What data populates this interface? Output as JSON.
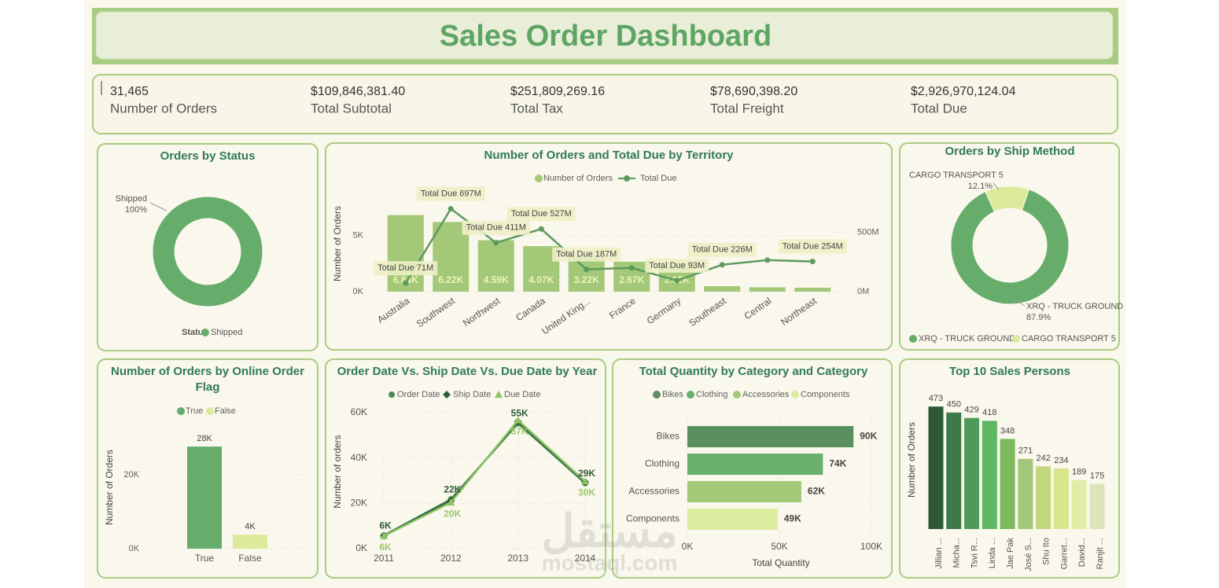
{
  "title": "Sales Order Dashboard",
  "kpis": [
    {
      "value": "31,465",
      "label": "Number of Orders"
    },
    {
      "value": "$109,846,381.40",
      "label": "Total Subtotal"
    },
    {
      "value": "$251,809,269.16",
      "label": "Total Tax"
    },
    {
      "value": "$78,690,398.20",
      "label": "Total Freight"
    },
    {
      "value": "$2,926,970,124.04",
      "label": "Total Due"
    }
  ],
  "chart_data": [
    {
      "type": "pie",
      "title": "Orders by Status",
      "legend_title": "Status",
      "categories": [
        "Shipped"
      ],
      "values": [
        100
      ],
      "value_labels": [
        "100%"
      ],
      "colors": [
        "#66ad6b"
      ],
      "donut": true
    },
    {
      "type": "bar_line",
      "title": "Number of Orders and Total Due by Territory",
      "categories": [
        "Australia",
        "Southwest",
        "Northwest",
        "Canada",
        "United King...",
        "France",
        "Germany",
        "Southeast",
        "Central",
        "Northeast"
      ],
      "series": [
        {
          "name": "Number of Orders",
          "type": "bar",
          "color": "#a3c878",
          "values": [
            6843,
            6224,
            4594,
            4067,
            3219,
            2672,
            2623,
            486,
            385,
            352
          ],
          "value_labels": [
            "6.84K",
            "6.22K",
            "4.59K",
            "4.07K",
            "3.22K",
            "2.67K",
            "2.62K",
            null,
            null,
            null
          ]
        },
        {
          "name": "Total Due",
          "type": "line",
          "axis": "y2",
          "color": "#5c9a5e",
          "values": [
            71,
            697,
            411,
            527,
            187,
            200,
            93,
            226,
            265,
            254
          ],
          "value_labels": [
            "Total Due 71M",
            "Total Due 697M",
            "Total Due 411M",
            "Total Due 527M",
            "Total Due 187M",
            null,
            "Total Due 93M",
            "Total Due 226M",
            null,
            "Total Due 254M"
          ]
        }
      ],
      "ylabel": "Number of Orders",
      "ylim": [
        0,
        8500
      ],
      "yticks": [
        {
          "value": 0,
          "label": "0K"
        },
        {
          "value": 5000,
          "label": "5K"
        }
      ],
      "y2lim": [
        0,
        800
      ],
      "y2ticks": [
        {
          "value": 0,
          "label": "0M"
        },
        {
          "value": 500,
          "label": "500M"
        }
      ],
      "grid": true
    },
    {
      "type": "pie",
      "title": "Orders by Ship Method",
      "categories": [
        "XRQ - TRUCK GROUND",
        "CARGO TRANSPORT 5"
      ],
      "values": [
        87.9,
        12.1
      ],
      "value_labels": [
        "87.9%",
        "12.1%"
      ],
      "colors": [
        "#66ad6b",
        "#dbeb9b"
      ],
      "donut": true
    },
    {
      "type": "bar",
      "title": "Number of Orders by Online Order Flag",
      "categories": [
        "True",
        "False"
      ],
      "values": [
        27659,
        3806
      ],
      "value_labels": [
        "28K",
        "4K"
      ],
      "colors": [
        "#66ad6b",
        "#dbeb9b"
      ],
      "ylabel": "Number of Orders",
      "ylim": [
        0,
        33000
      ],
      "yticks": [
        {
          "value": 0,
          "label": "0K"
        },
        {
          "value": 20000,
          "label": "20K"
        }
      ],
      "grid": true,
      "legend": true
    },
    {
      "type": "line",
      "title": "Order Date Vs. Ship Date Vs. Due Date by Year",
      "x": [
        2011,
        2012,
        2013,
        2014
      ],
      "xlim": [
        2011,
        2014
      ],
      "xticks": [
        2011,
        2012,
        2013,
        2014
      ],
      "series": [
        {
          "name": "Order Date",
          "color": "#4a8a57",
          "marker": "circle",
          "values": [
            5800,
            21800,
            55300,
            28900
          ],
          "value_labels": [
            "6K",
            "22K",
            "55K",
            "29K"
          ]
        },
        {
          "name": "Ship Date",
          "color": "#2d5e36",
          "marker": "diamond",
          "values": [
            5700,
            21100,
            56100,
            29400
          ]
        },
        {
          "name": "Due Date",
          "color": "#8fc466",
          "marker": "triangle",
          "values": [
            5600,
            20400,
            56700,
            29700
          ],
          "value_labels": [
            "6K",
            "20K",
            "57K",
            "30K"
          ]
        }
      ],
      "ylabel": "Number of orders",
      "ylim": [
        0,
        60000
      ],
      "yticks": [
        {
          "value": 0,
          "label": "0K"
        },
        {
          "value": 20000,
          "label": "20K"
        },
        {
          "value": 40000,
          "label": "40K"
        },
        {
          "value": 60000,
          "label": "60K"
        }
      ],
      "grid": true
    },
    {
      "type": "hbar",
      "title": "Total Quantity by Category and Category",
      "categories": [
        "Bikes",
        "Clothing",
        "Accessories",
        "Components"
      ],
      "values": [
        90268,
        73670,
        61932,
        49044
      ],
      "value_labels": [
        "90K",
        "74K",
        "62K",
        "49K"
      ],
      "colors": [
        "#5a9060",
        "#68b06b",
        "#a3c878",
        "#dcec9e"
      ],
      "xlabel": "Total Quantity",
      "xlim": [
        0,
        100000
      ],
      "xticks": [
        {
          "value": 0,
          "label": "0K"
        },
        {
          "value": 50000,
          "label": "50K"
        },
        {
          "value": 100000,
          "label": "100K"
        }
      ],
      "grid": true,
      "legend": true
    },
    {
      "type": "bar",
      "title": "Top 10 Sales Persons",
      "categories": [
        "Jillian ...",
        "Micha...",
        "Tsvi R...",
        "Linda ...",
        "Jae Pak",
        "José S...",
        "Shu Ito",
        "Garret...",
        "David...",
        "Ranjit ..."
      ],
      "values": [
        473,
        450,
        429,
        418,
        348,
        271,
        242,
        234,
        189,
        175
      ],
      "colors": [
        "#2c5a36",
        "#3d7a4a",
        "#4f9a5a",
        "#5fb862",
        "#7cba5c",
        "#a3c67a",
        "#c2d77c",
        "#d8e68e",
        "#e2eca6",
        "#dde4bc"
      ],
      "ylabel": "Number of Orders",
      "ylim": [
        0,
        510
      ],
      "yticks": [],
      "grid": false,
      "legend": false
    }
  ],
  "watermark": [
    "مستقل",
    "mostaql.com"
  ]
}
